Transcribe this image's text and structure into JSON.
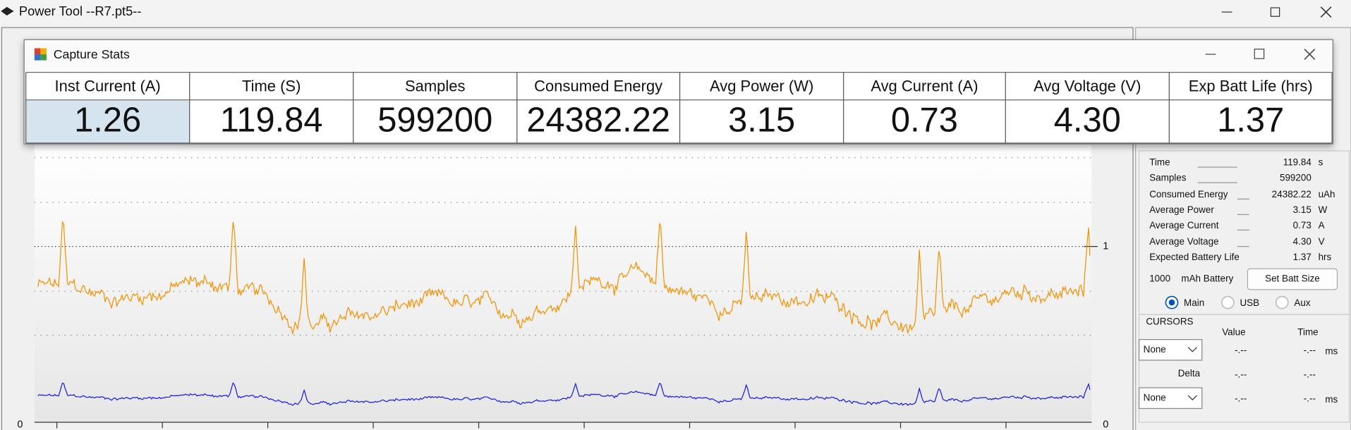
{
  "window": {
    "title": "Power Tool --R7.pt5--"
  },
  "dialog": {
    "title": "Capture Stats",
    "columns": [
      {
        "header": "Inst Current (A)",
        "value": "1.26"
      },
      {
        "header": "Time (S)",
        "value": "119.84"
      },
      {
        "header": "Samples",
        "value": "599200"
      },
      {
        "header": "Consumed Energy",
        "value": "24382.22"
      },
      {
        "header": "Avg Power (W)",
        "value": "3.15"
      },
      {
        "header": "Avg Current (A)",
        "value": "0.73"
      },
      {
        "header": "Avg Voltage (V)",
        "value": "4.30"
      },
      {
        "header": "Exp Batt Life (hrs)",
        "value": "1.37"
      }
    ]
  },
  "chart": {
    "left_axis": [
      "0"
    ],
    "right_axis": [
      "1",
      "0"
    ]
  },
  "side_panel": {
    "stats": [
      {
        "label": "Time",
        "value": "119.84",
        "unit": "s"
      },
      {
        "label": "Samples",
        "value": "599200"
      },
      {
        "label": "Consumed Energy",
        "value": "24382.22",
        "unit": "uAh"
      },
      {
        "label": "Average Power",
        "value": "3.15",
        "unit": "W"
      },
      {
        "label": "Average Current",
        "value": "0.73",
        "unit": "A"
      },
      {
        "label": "Average Voltage",
        "value": "4.30",
        "unit": "V"
      },
      {
        "label": "Expected Battery Life",
        "value": "1.37",
        "unit": "hrs"
      }
    ],
    "battery": {
      "capacity": "1000",
      "label": "mAh Battery",
      "button": "Set Batt Size"
    },
    "radios": [
      "Main",
      "USB",
      "Aux"
    ],
    "cursors": {
      "title": "CURSORS",
      "value_header": "Value",
      "time_header": "Time",
      "delta": "Delta",
      "rows": [
        {
          "select": "None",
          "value": "-.--",
          "time": "-.--",
          "unit": "ms"
        },
        {
          "value": "-.--",
          "time": "-.--"
        },
        {
          "select": "None",
          "value": "-.--",
          "time": "-.--",
          "unit": "ms"
        }
      ]
    }
  }
}
